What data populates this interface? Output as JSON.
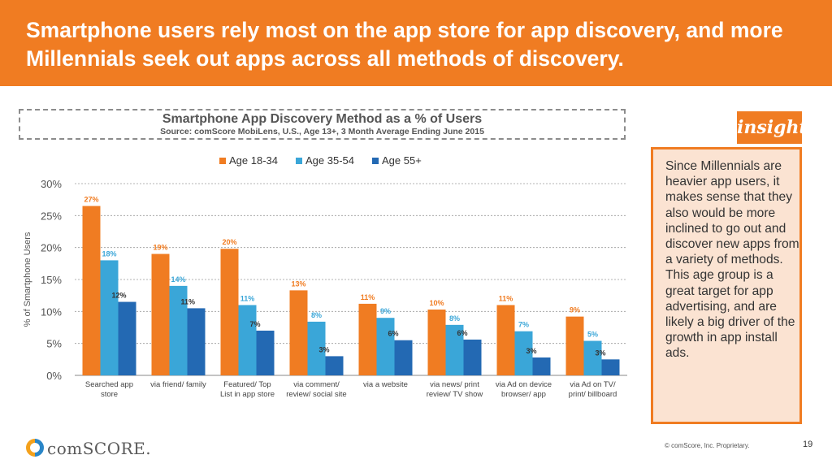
{
  "header": {
    "title": "Smartphone users rely most on the app store for app discovery, and more Millennials seek out apps across all methods of discovery."
  },
  "chart_data": {
    "type": "bar",
    "title": "Smartphone App Discovery Method as a % of Users",
    "subtitle": "Source: comScore MobiLens, U.S., Age 13+, 3 Month Average Ending June 2015",
    "xlabel": "",
    "ylabel": "% of Smartphone Users",
    "ylim": [
      0,
      30
    ],
    "yticks": [
      0,
      5,
      10,
      15,
      20,
      25,
      30
    ],
    "ytick_labels": [
      "0%",
      "5%",
      "10%",
      "15%",
      "20%",
      "25%",
      "30%"
    ],
    "grid": true,
    "legend_position": "top",
    "categories": [
      [
        "Searched app",
        "store"
      ],
      [
        "via friend/ family"
      ],
      [
        "Featured/ Top",
        "List in app store"
      ],
      [
        "via comment/",
        "review/ social site"
      ],
      [
        "via a website"
      ],
      [
        "via news/ print",
        "review/ TV show"
      ],
      [
        "via Ad on device",
        "browser/ app"
      ],
      [
        "via Ad on TV/",
        "print/ billboard"
      ]
    ],
    "series": [
      {
        "name": "Age 18-34",
        "color": "#f07c22",
        "values": [
          26.5,
          19,
          19.8,
          13.3,
          11.2,
          10.3,
          11,
          9.2
        ],
        "labels": [
          "27%",
          "19%",
          "20%",
          "13%",
          "11%",
          "10%",
          "11%",
          "9%"
        ]
      },
      {
        "name": "Age 35-54",
        "color": "#3aa6d8",
        "values": [
          18,
          14,
          11,
          8.4,
          9,
          7.9,
          6.9,
          5.4
        ],
        "labels": [
          "18%",
          "14%",
          "11%",
          "8%",
          "9%",
          "8%",
          "7%",
          "5%"
        ]
      },
      {
        "name": "Age 55+",
        "color": "#2369b3",
        "values": [
          11.5,
          10.5,
          7,
          3,
          5.5,
          5.6,
          2.8,
          2.5
        ],
        "labels": [
          "12%",
          "11%",
          "7%",
          "3%",
          "6%",
          "6%",
          "3%",
          "3%"
        ]
      }
    ]
  },
  "insight": {
    "tag": "insight",
    "text": "Since Millennials are heavier app users, it makes sense that they also would be more inclined to go out and discover new apps from a variety of methods. This age group is a great target for app advertising, and are likely a big driver of the growth in app install ads."
  },
  "footer": {
    "logo": "comSCORE.",
    "copyright": "© comScore, Inc. Proprietary.",
    "page": "19"
  },
  "colors": {
    "accent": "#f07c22",
    "insight_bg": "#fbe3d2"
  }
}
